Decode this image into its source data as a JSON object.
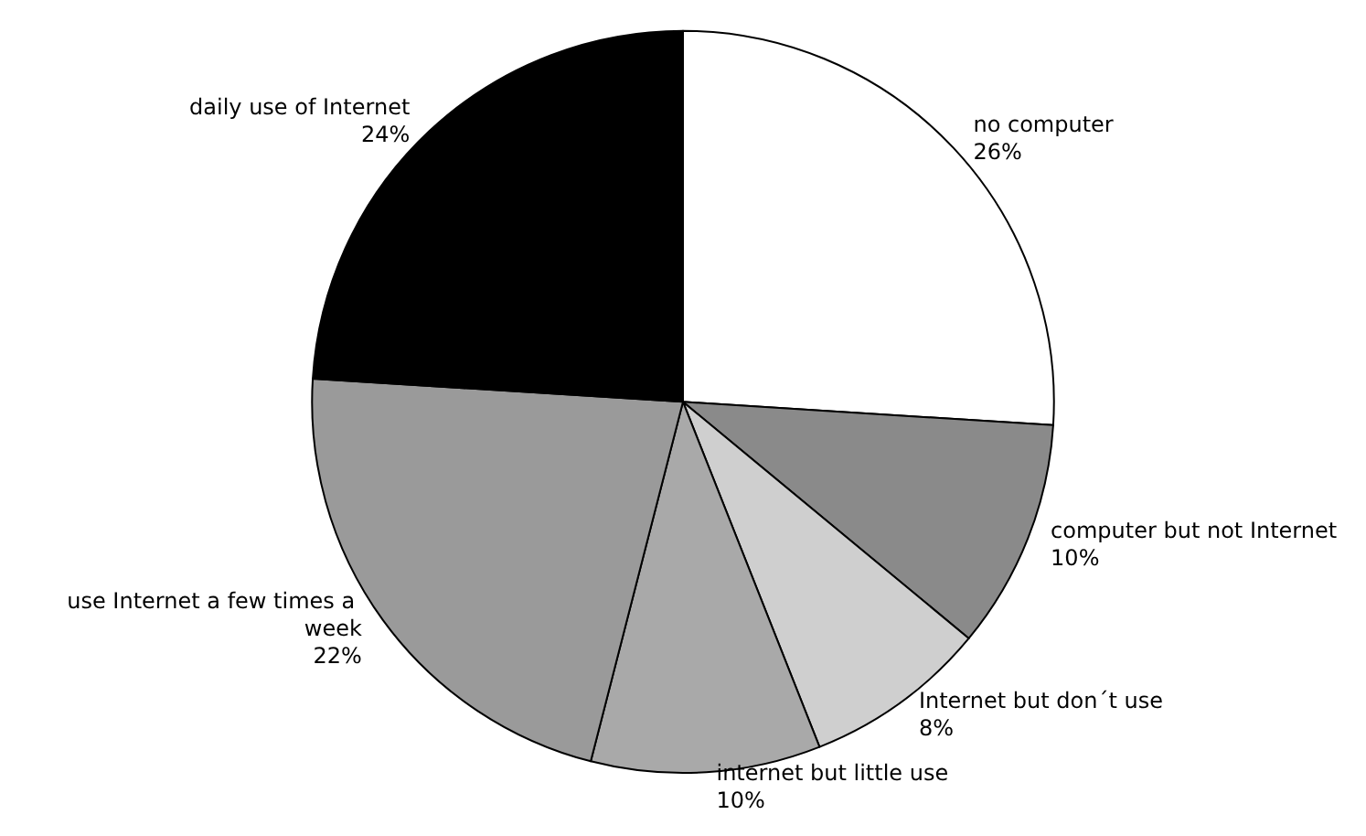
{
  "chart_data": {
    "type": "pie",
    "categories": [
      "no computer",
      "computer but not Internet",
      "Internet but don´t use",
      "internet but little use",
      "use Internet a few times a week",
      "daily use of Internet"
    ],
    "values": [
      26,
      10,
      8,
      10,
      22,
      24
    ],
    "colors": [
      "#ffffff",
      "#8a8a8a",
      "#cfcfcf",
      "#a9a9a9",
      "#9a9a9a",
      "#000000"
    ],
    "legend": false,
    "value_labels": [
      "26%",
      "10%",
      "8%",
      "10%",
      "22%",
      "24%"
    ]
  }
}
